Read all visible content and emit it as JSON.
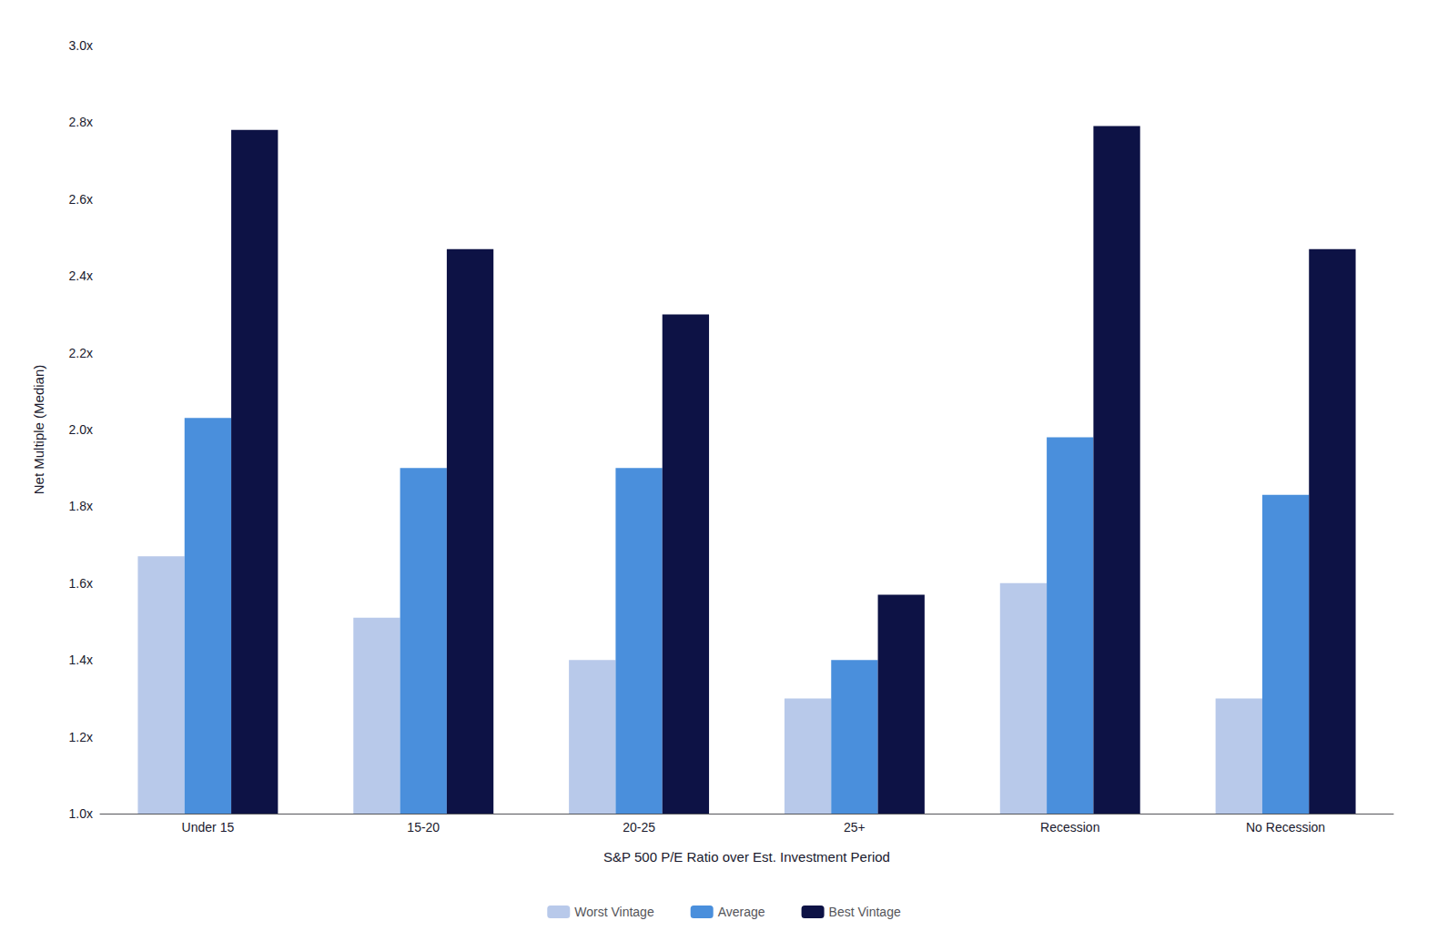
{
  "chart_data": {
    "type": "bar",
    "xlabel": "S&P 500 P/E Ratio over Est. Investment Period",
    "ylabel": "Net Multiple (Median)",
    "categories": [
      "Under 15",
      "15-20",
      "20-25",
      "25+",
      "Recession",
      "No Recession"
    ],
    "series": [
      {
        "name": "Worst Vintage",
        "color": "#b8c9ea",
        "values": [
          1.67,
          1.51,
          1.4,
          1.3,
          1.6,
          1.3
        ]
      },
      {
        "name": "Average",
        "color": "#4a8fdc",
        "values": [
          2.03,
          1.9,
          1.9,
          1.4,
          1.98,
          1.83
        ]
      },
      {
        "name": "Best Vintage",
        "color": "#0d1245",
        "values": [
          2.78,
          2.47,
          2.3,
          1.57,
          2.79,
          2.47
        ]
      }
    ],
    "ylim": [
      1.0,
      3.0
    ],
    "yticks": [
      {
        "value": 1.0,
        "label": "1.0x"
      },
      {
        "value": 1.2,
        "label": "1.2x"
      },
      {
        "value": 1.4,
        "label": "1.4x"
      },
      {
        "value": 1.6,
        "label": "1.6x"
      },
      {
        "value": 1.8,
        "label": "1.8x"
      },
      {
        "value": 2.0,
        "label": "2.0x"
      },
      {
        "value": 2.2,
        "label": "2.2x"
      },
      {
        "value": 2.4,
        "label": "2.4x"
      },
      {
        "value": 2.6,
        "label": "2.6x"
      },
      {
        "value": 2.8,
        "label": "2.8x"
      },
      {
        "value": 3.0,
        "label": "3.0x"
      }
    ],
    "grid": false,
    "legend": "bottom"
  }
}
